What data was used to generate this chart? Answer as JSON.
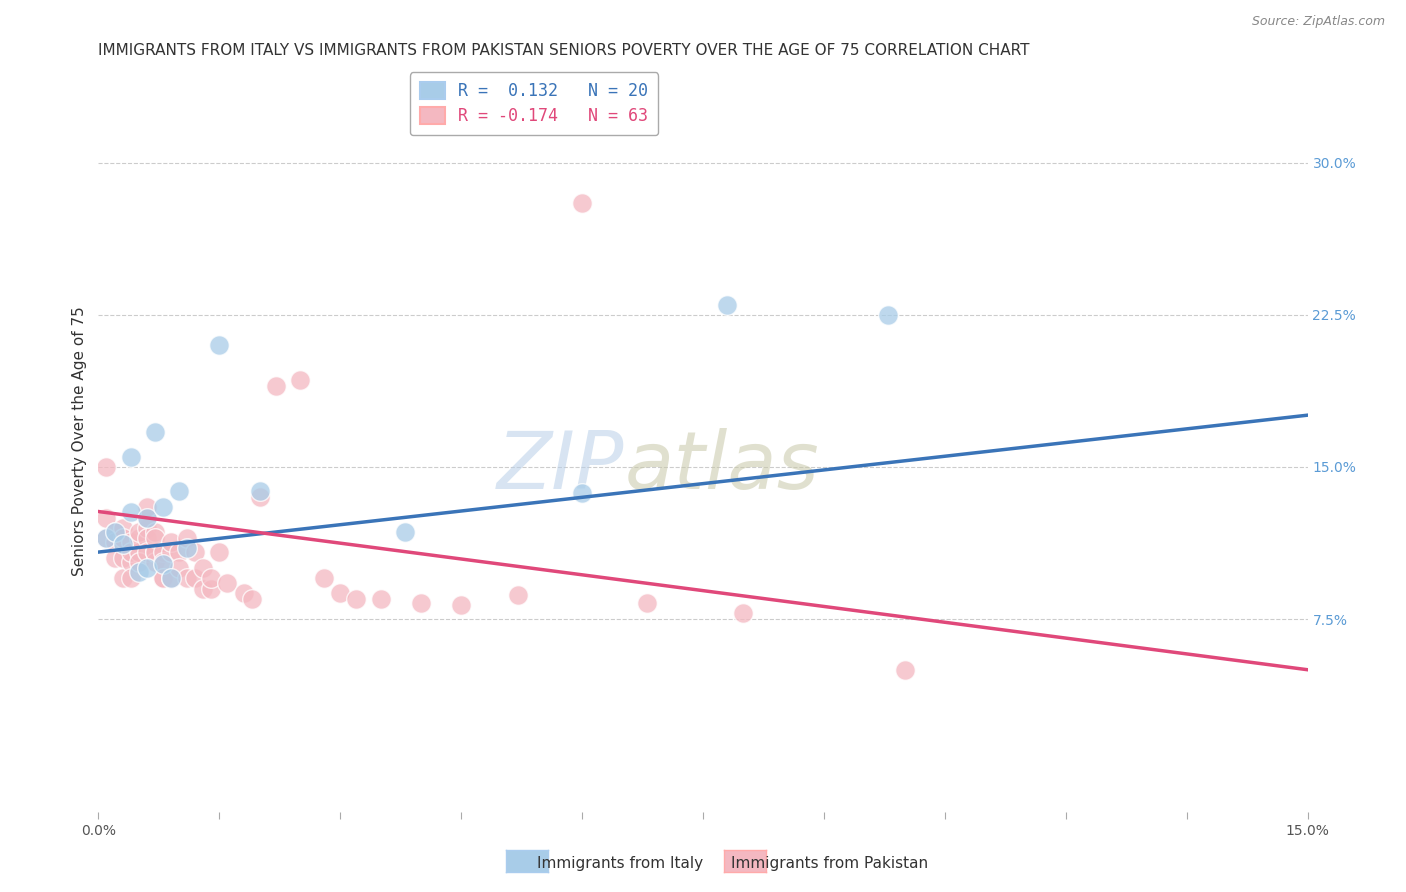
{
  "title": "IMMIGRANTS FROM ITALY VS IMMIGRANTS FROM PAKISTAN SENIORS POVERTY OVER THE AGE OF 75 CORRELATION CHART",
  "source": "Source: ZipAtlas.com",
  "xlabel_italy": "Immigrants from Italy",
  "xlabel_pakistan": "Immigrants from Pakistan",
  "ylabel": "Seniors Poverty Over the Age of 75",
  "xlim": [
    0.0,
    0.15
  ],
  "ylim": [
    -0.02,
    0.345
  ],
  "ytick_right": [
    0.075,
    0.15,
    0.225,
    0.3
  ],
  "ytick_right_labels": [
    "7.5%",
    "15.0%",
    "22.5%",
    "30.0%"
  ],
  "italy_color": "#a8cce8",
  "pakistan_color": "#f4b8c1",
  "italy_line_color": "#3a74b8",
  "pakistan_line_color": "#e0487a",
  "legend_R_italy": "R =  0.132   N = 20",
  "legend_R_pakistan": "R = -0.174   N = 63",
  "watermark_zip": "ZIP",
  "watermark_atlas": "atlas",
  "italy_x": [
    0.001,
    0.002,
    0.003,
    0.004,
    0.004,
    0.005,
    0.006,
    0.006,
    0.007,
    0.008,
    0.008,
    0.009,
    0.01,
    0.011,
    0.015,
    0.02,
    0.038,
    0.06,
    0.078,
    0.098
  ],
  "italy_y": [
    0.115,
    0.118,
    0.112,
    0.128,
    0.155,
    0.098,
    0.125,
    0.1,
    0.167,
    0.13,
    0.102,
    0.095,
    0.138,
    0.11,
    0.21,
    0.138,
    0.118,
    0.137,
    0.23,
    0.225
  ],
  "pakistan_x": [
    0.001,
    0.001,
    0.001,
    0.002,
    0.002,
    0.002,
    0.003,
    0.003,
    0.003,
    0.003,
    0.004,
    0.004,
    0.004,
    0.004,
    0.005,
    0.005,
    0.005,
    0.005,
    0.006,
    0.006,
    0.006,
    0.006,
    0.006,
    0.007,
    0.007,
    0.007,
    0.007,
    0.007,
    0.008,
    0.008,
    0.008,
    0.008,
    0.009,
    0.009,
    0.009,
    0.01,
    0.01,
    0.011,
    0.011,
    0.012,
    0.012,
    0.013,
    0.013,
    0.014,
    0.014,
    0.015,
    0.016,
    0.018,
    0.019,
    0.02,
    0.022,
    0.025,
    0.028,
    0.03,
    0.032,
    0.035,
    0.04,
    0.045,
    0.052,
    0.06,
    0.068,
    0.08,
    0.1
  ],
  "pakistan_y": [
    0.115,
    0.125,
    0.15,
    0.118,
    0.113,
    0.105,
    0.12,
    0.105,
    0.115,
    0.095,
    0.113,
    0.103,
    0.108,
    0.095,
    0.108,
    0.115,
    0.103,
    0.118,
    0.12,
    0.115,
    0.108,
    0.125,
    0.13,
    0.118,
    0.108,
    0.103,
    0.108,
    0.115,
    0.095,
    0.108,
    0.103,
    0.095,
    0.108,
    0.095,
    0.113,
    0.108,
    0.1,
    0.095,
    0.115,
    0.108,
    0.095,
    0.09,
    0.1,
    0.09,
    0.095,
    0.108,
    0.093,
    0.088,
    0.085,
    0.135,
    0.19,
    0.193,
    0.095,
    0.088,
    0.085,
    0.085,
    0.083,
    0.082,
    0.087,
    0.28,
    0.083,
    0.078,
    0.05
  ],
  "title_fontsize": 11,
  "axis_label_fontsize": 11,
  "tick_fontsize": 10,
  "italy_line_slope": 0.45,
  "italy_line_intercept": 0.108,
  "pakistan_line_slope": -0.52,
  "pakistan_line_intercept": 0.128
}
